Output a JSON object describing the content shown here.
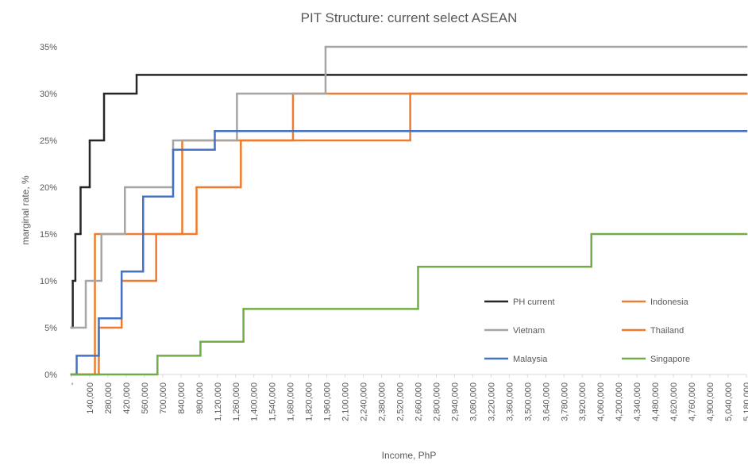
{
  "chart_data": {
    "type": "step",
    "title": "PIT Structure: current select ASEAN",
    "x_label": "Income, PhP",
    "y_label": "marginal rate, %",
    "xlim": [
      0,
      5180000
    ],
    "ylim": [
      0,
      35
    ],
    "xticks": [
      {
        "value": 0,
        "label": "-"
      },
      {
        "value": 140000,
        "label": "140,000"
      },
      {
        "value": 280000,
        "label": "280,000"
      },
      {
        "value": 420000,
        "label": "420,000"
      },
      {
        "value": 560000,
        "label": "560,000"
      },
      {
        "value": 700000,
        "label": "700,000"
      },
      {
        "value": 840000,
        "label": "840,000"
      },
      {
        "value": 980000,
        "label": "980,000"
      },
      {
        "value": 1120000,
        "label": "1,120,000"
      },
      {
        "value": 1260000,
        "label": "1,260,000"
      },
      {
        "value": 1400000,
        "label": "1,400,000"
      },
      {
        "value": 1540000,
        "label": "1,540,000"
      },
      {
        "value": 1680000,
        "label": "1,680,000"
      },
      {
        "value": 1820000,
        "label": "1,820,000"
      },
      {
        "value": 1960000,
        "label": "1,960,000"
      },
      {
        "value": 2100000,
        "label": "2,100,000"
      },
      {
        "value": 2240000,
        "label": "2,240,000"
      },
      {
        "value": 2380000,
        "label": "2,380,000"
      },
      {
        "value": 2520000,
        "label": "2,520,000"
      },
      {
        "value": 2660000,
        "label": "2,660,000"
      },
      {
        "value": 2800000,
        "label": "2,800,000"
      },
      {
        "value": 2940000,
        "label": "2,940,000"
      },
      {
        "value": 3080000,
        "label": "3,080,000"
      },
      {
        "value": 3220000,
        "label": "3,220,000"
      },
      {
        "value": 3360000,
        "label": "3,360,000"
      },
      {
        "value": 3500000,
        "label": "3,500,000"
      },
      {
        "value": 3640000,
        "label": "3,640,000"
      },
      {
        "value": 3780000,
        "label": "3,780,000"
      },
      {
        "value": 3920000,
        "label": "3,920,000"
      },
      {
        "value": 4060000,
        "label": "4,060,000"
      },
      {
        "value": 4200000,
        "label": "4,200,000"
      },
      {
        "value": 4340000,
        "label": "4,340,000"
      },
      {
        "value": 4480000,
        "label": "4,480,000"
      },
      {
        "value": 4620000,
        "label": "4,620,000"
      },
      {
        "value": 4760000,
        "label": "4,760,000"
      },
      {
        "value": 4900000,
        "label": "4,900,000"
      },
      {
        "value": 5040000,
        "label": "5,040,000"
      },
      {
        "value": 5180000,
        "label": "5,180,000"
      }
    ],
    "yticks": [
      {
        "value": 0,
        "label": "0%"
      },
      {
        "value": 5,
        "label": "5%"
      },
      {
        "value": 10,
        "label": "10%"
      },
      {
        "value": 15,
        "label": "15%"
      },
      {
        "value": 20,
        "label": "20%"
      },
      {
        "value": 25,
        "label": "25%"
      },
      {
        "value": 30,
        "label": "30%"
      },
      {
        "value": 35,
        "label": "35%"
      }
    ],
    "grid": false,
    "legend": "bottom-right",
    "series": [
      {
        "name": "PH current",
        "color": "#262626",
        "x": [
          0,
          10000,
          30000,
          70000,
          140000,
          250000,
          500000
        ],
        "values": [
          5,
          10,
          15,
          20,
          25,
          30,
          32
        ]
      },
      {
        "name": "Indonesia",
        "color": "#ed7d31",
        "x": [
          0,
          180000,
          850000,
          1700000
        ],
        "values": [
          0,
          15,
          25,
          30
        ]
      },
      {
        "name": "Vietnam",
        "color": "#a5a5a5",
        "x": [
          0,
          110000,
          230000,
          410000,
          780000,
          1270000,
          1950000
        ],
        "values": [
          5,
          10,
          15,
          20,
          25,
          30,
          35
        ]
      },
      {
        "name": "Thailand",
        "color": "#f07b2c",
        "x": [
          0,
          210000,
          385000,
          650000,
          960000,
          1300000,
          2600000
        ],
        "values": [
          0,
          5,
          10,
          15,
          20,
          25,
          30
        ]
      },
      {
        "name": "Malaysia",
        "color": "#4472c4",
        "x": [
          0,
          40000,
          210000,
          385000,
          550000,
          780000,
          1100000
        ],
        "values": [
          0,
          2,
          6,
          11,
          19,
          24,
          26
        ]
      },
      {
        "name": "Singapore",
        "color": "#70ad47",
        "x": [
          0,
          660000,
          990000,
          1320000,
          2660000,
          3990000
        ],
        "values": [
          0,
          2,
          3.5,
          7,
          11.5,
          15
        ]
      }
    ]
  }
}
